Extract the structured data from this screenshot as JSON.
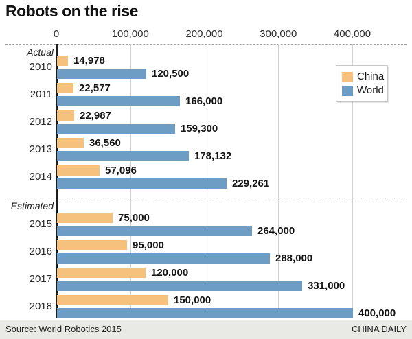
{
  "footer": {
    "source": "Source: World Robotics 2015",
    "credit": "CHINA DAILY"
  },
  "chart_data": {
    "type": "bar",
    "orientation": "horizontal",
    "title": "Robots on the rise",
    "xlabel": "",
    "ylabel": "",
    "xlim": [
      0,
      400000
    ],
    "grid": "vertical-light-gray",
    "legend_position": "top-right-box",
    "x_ticks": [
      0,
      100000,
      200000,
      300000,
      400000
    ],
    "x_tick_labels": [
      "0",
      "100,000",
      "200,000",
      "300,000",
      "400,000"
    ],
    "series": [
      {
        "name": "China",
        "color": "#F5C17C"
      },
      {
        "name": "World",
        "color": "#6D9CC5"
      }
    ],
    "sections": [
      {
        "label": "Actual",
        "rows": [
          {
            "year": "2010",
            "china": 14978,
            "world": 120500,
            "china_label": "14,978",
            "world_label": "120,500"
          },
          {
            "year": "2011",
            "china": 22577,
            "world": 166000,
            "china_label": "22,577",
            "world_label": "166,000"
          },
          {
            "year": "2012",
            "china": 22987,
            "world": 159300,
            "china_label": "22,987",
            "world_label": "159,300"
          },
          {
            "year": "2013",
            "china": 36560,
            "world": 178132,
            "china_label": "36,560",
            "world_label": "178,132"
          },
          {
            "year": "2014",
            "china": 57096,
            "world": 229261,
            "china_label": "57,096",
            "world_label": "229,261"
          }
        ]
      },
      {
        "label": "Estimated",
        "rows": [
          {
            "year": "2015",
            "china": 75000,
            "world": 264000,
            "china_label": "75,000",
            "world_label": "264,000"
          },
          {
            "year": "2016",
            "china": 95000,
            "world": 288000,
            "china_label": "95,000",
            "world_label": "288,000"
          },
          {
            "year": "2017",
            "china": 120000,
            "world": 331000,
            "china_label": "120,000",
            "world_label": "331,000"
          },
          {
            "year": "2018",
            "china": 150000,
            "world": 400000,
            "china_label": "150,000",
            "world_label": "400,000"
          }
        ]
      }
    ]
  }
}
